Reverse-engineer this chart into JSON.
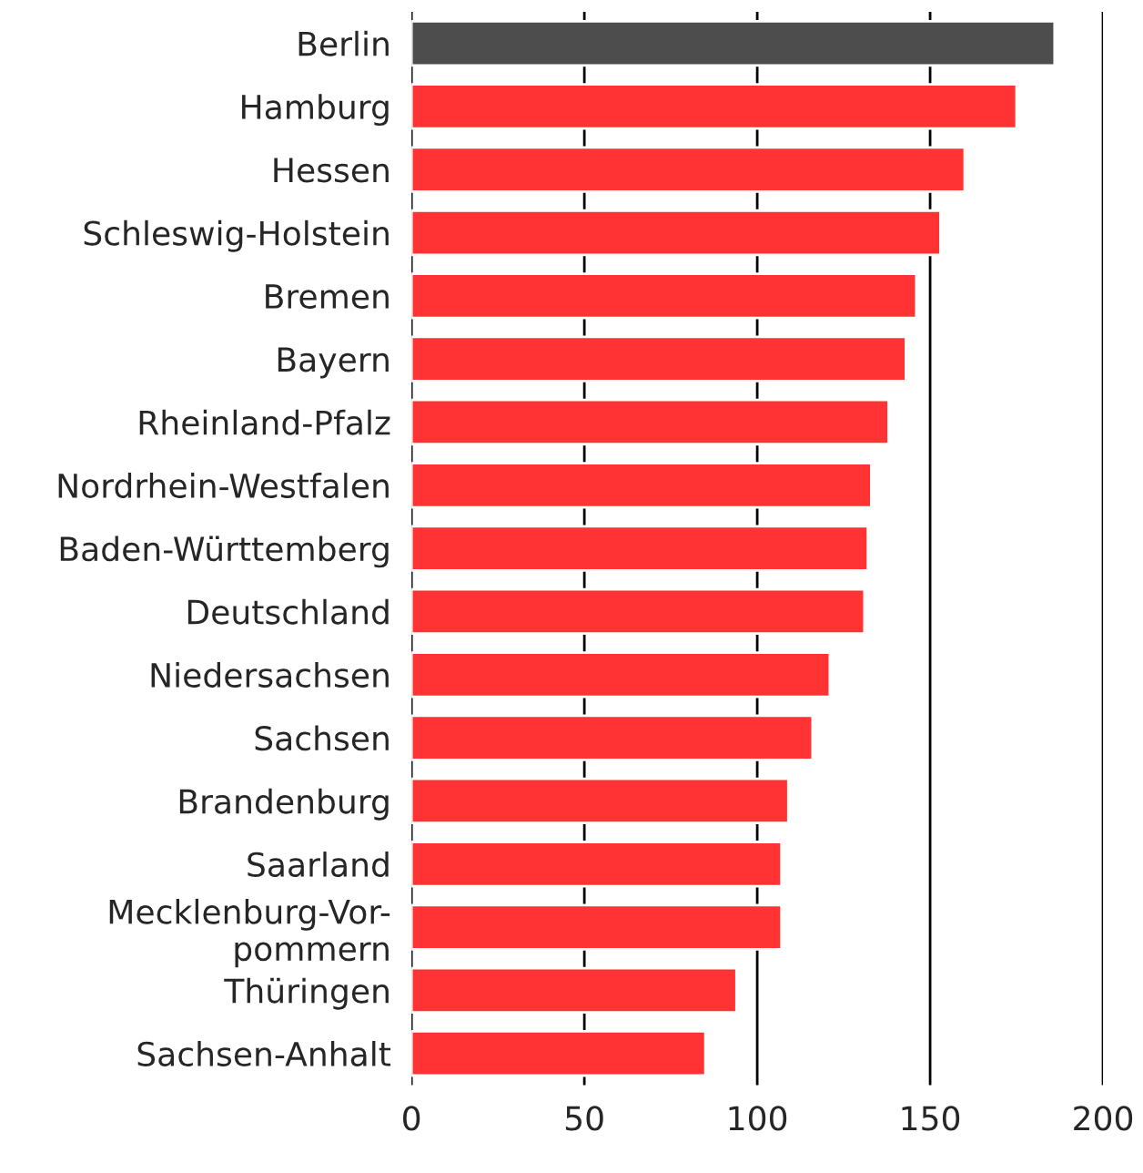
{
  "chart_data": {
    "type": "bar",
    "orientation": "horizontal",
    "categories": [
      "Berlin",
      "Hamburg",
      "Hessen",
      "Schleswig-Holstein",
      "Bremen",
      "Bayern",
      "Rheinland-Pfalz",
      "Nordrhein-Westfalen",
      "Baden-Württemberg",
      "Deutschland",
      "Niedersachsen",
      "Sachsen",
      "Brandenburg",
      "Saarland",
      "Mecklenburg-Vor-\npommern",
      "Thüringen",
      "Sachsen-Anhalt"
    ],
    "values": [
      186,
      175,
      160,
      153,
      146,
      143,
      138,
      133,
      132,
      131,
      121,
      116,
      109,
      107,
      107,
      94,
      85
    ],
    "colors": [
      "#4d4d4d",
      "#ff3333",
      "#ff3333",
      "#ff3333",
      "#ff3333",
      "#ff3333",
      "#ff3333",
      "#ff3333",
      "#ff3333",
      "#ff3333",
      "#ff3333",
      "#ff3333",
      "#ff3333",
      "#ff3333",
      "#ff3333",
      "#ff3333",
      "#ff3333"
    ],
    "xlim": [
      0,
      200
    ],
    "xticks": [
      0,
      50,
      100,
      150,
      200
    ],
    "grid": "x"
  }
}
